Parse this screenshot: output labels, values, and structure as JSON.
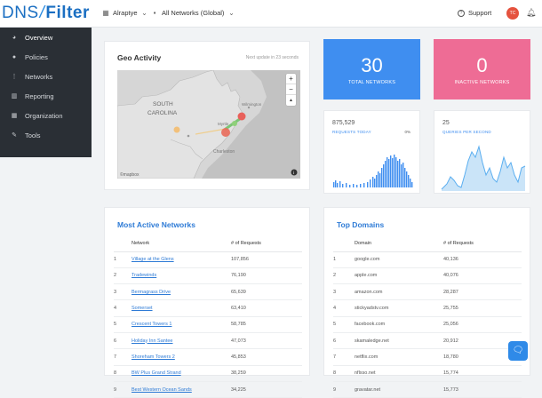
{
  "brand": {
    "logo_left": "DNS",
    "logo_slash": "/",
    "logo_right": "Filter"
  },
  "header": {
    "org_name": "Alraptye",
    "networks_selector": "All Networks (Global)",
    "support_label": "Support",
    "avatar_initials": "TC"
  },
  "sidebar": {
    "items": [
      {
        "label": "Overview",
        "icon": "gauge-icon"
      },
      {
        "label": "Policies",
        "icon": "user-icon"
      },
      {
        "label": "Networks",
        "icon": "network-icon"
      },
      {
        "label": "Reporting",
        "icon": "chart-icon"
      },
      {
        "label": "Organization",
        "icon": "building-icon"
      },
      {
        "label": "Tools",
        "icon": "wrench-icon"
      }
    ]
  },
  "geo": {
    "title": "Geo Activity",
    "update_note": "Next update in 23 seconds",
    "map_label_1": "SOUTH",
    "map_label_2": "CAROLINA",
    "map_city_1": "Myrtle...",
    "map_city_2": "Wilmington",
    "map_city_3": "Charleston",
    "map_credit": "©mapbox",
    "zoom_in": "+",
    "zoom_out": "−",
    "compass": "▲"
  },
  "stats": {
    "total_networks": {
      "value": "30",
      "label": "TOTAL NETWORKS",
      "color": "#3f8ef0"
    },
    "inactive_networks": {
      "value": "0",
      "label": "INACTIVE NETWORKS",
      "color": "#ee6c95"
    },
    "requests_today": {
      "value": "875,529",
      "label": "REQUESTS TODAY",
      "pct": "0%"
    },
    "queries_per_second": {
      "value": "25",
      "label": "QUERIES PER SECOND"
    }
  },
  "most_active": {
    "title": "Most Active Networks",
    "columns": [
      "",
      "Network",
      "# of Requests"
    ],
    "rows": [
      [
        "1",
        "Village at the Glens",
        "107,856"
      ],
      [
        "2",
        "Tradewinds",
        "76,190"
      ],
      [
        "3",
        "Bermagrass Drive",
        "65,639"
      ],
      [
        "4",
        "Somerset",
        "63,410"
      ],
      [
        "5",
        "Crescent Towers 1",
        "58,785"
      ],
      [
        "6",
        "Holiday Inn Santee",
        "47,073"
      ],
      [
        "7",
        "Shoreham Towers 2",
        "45,853"
      ],
      [
        "8",
        "BW Plus Grand Strand",
        "38,259"
      ],
      [
        "9",
        "Best Western Ocean Sands",
        "34,225"
      ]
    ]
  },
  "top_domains": {
    "title": "Top Domains",
    "columns": [
      "",
      "Domain",
      "# of Requests"
    ],
    "rows": [
      [
        "1",
        "google.com",
        "40,136"
      ],
      [
        "2",
        "apple.com",
        "40,076"
      ],
      [
        "3",
        "amazon.com",
        "28,287"
      ],
      [
        "4",
        "stickyadstv.com",
        "25,755"
      ],
      [
        "5",
        "facebook.com",
        "25,056"
      ],
      [
        "6",
        "skamaledge.net",
        "20,912"
      ],
      [
        "7",
        "netflix.com",
        "18,780"
      ],
      [
        "8",
        "nflxso.net",
        "15,774"
      ],
      [
        "9",
        "gravatar.net",
        "15,773"
      ]
    ]
  },
  "chat_icon": "chat-icon"
}
